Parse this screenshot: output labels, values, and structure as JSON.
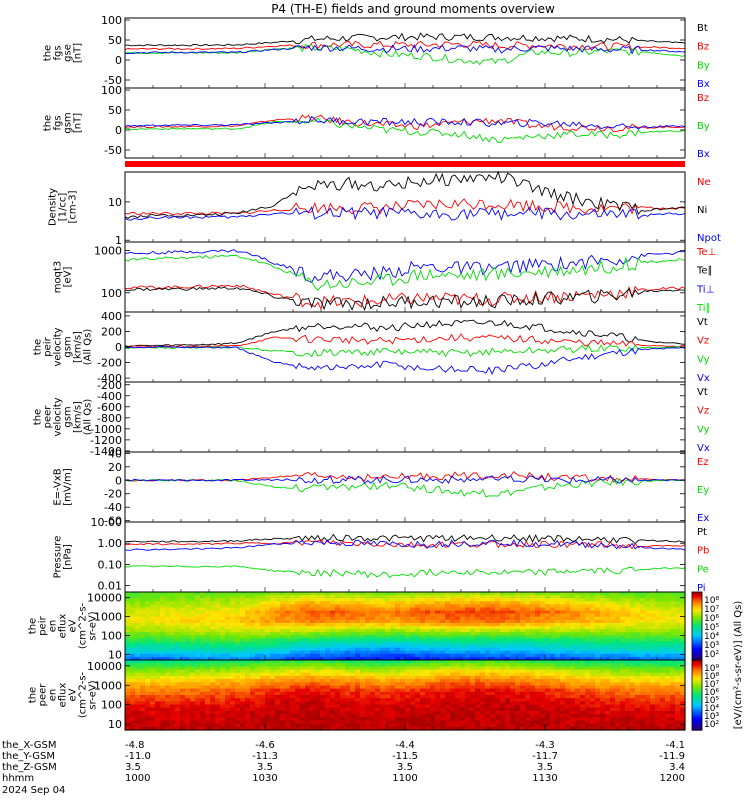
{
  "title": "P4 (TH-E) fields and ground moments overview",
  "colors": {
    "black": "#000000",
    "red": "#ff0000",
    "green": "#00dd00",
    "blue": "#0000ff"
  },
  "chart_data": [
    {
      "type": "line",
      "panel": "fgs_gse",
      "ylabel": [
        "the",
        "fgs",
        "gse",
        "[nT]"
      ],
      "yticks": [
        "100",
        "50",
        "0",
        "-50"
      ],
      "ylim": [
        -70,
        105
      ],
      "series": [
        {
          "name": "Bt",
          "color": "#000000",
          "values": [
            37,
            37,
            37,
            38,
            44,
            52,
            55,
            57,
            58,
            58,
            57,
            56,
            54,
            52,
            47,
            42
          ]
        },
        {
          "name": "Bz",
          "color": "#ff0000",
          "values": [
            27,
            28,
            28,
            29,
            35,
            38,
            38,
            38,
            38,
            40,
            36,
            37,
            35,
            34,
            32,
            30
          ]
        },
        {
          "name": "By",
          "color": "#00dd00",
          "values": [
            18,
            18,
            18,
            18,
            28,
            30,
            28,
            15,
            10,
            0,
            -5,
            20,
            18,
            22,
            20,
            10
          ]
        },
        {
          "name": "Bx",
          "color": "#0000ff",
          "values": [
            18,
            19,
            19,
            19,
            26,
            32,
            30,
            28,
            28,
            30,
            26,
            30,
            28,
            26,
            25,
            20
          ]
        }
      ]
    },
    {
      "type": "line",
      "panel": "fgs_gsm",
      "ylabel": [
        "the",
        "fgs",
        "gsm",
        "[nT]"
      ],
      "yticks": [
        "100",
        "50",
        "0",
        "-50"
      ],
      "ylim": [
        -70,
        105
      ],
      "series": [
        {
          "name": "Bz",
          "color": "#ff0000",
          "values": [
            8,
            8,
            9,
            10,
            25,
            30,
            20,
            12,
            10,
            20,
            25,
            10,
            8,
            5,
            6,
            8
          ]
        },
        {
          "name": "By",
          "color": "#00dd00",
          "values": [
            2,
            3,
            3,
            3,
            20,
            22,
            10,
            0,
            -5,
            -10,
            -25,
            -15,
            -10,
            -12,
            -5,
            -2
          ]
        },
        {
          "name": "Bx",
          "color": "#0000ff",
          "values": [
            10,
            12,
            12,
            13,
            18,
            25,
            22,
            20,
            20,
            20,
            16,
            18,
            15,
            10,
            8,
            10
          ]
        }
      ]
    },
    {
      "type": "line",
      "panel": "density",
      "log": true,
      "ylabel": [
        "Density",
        "[1/cc]",
        "[cm-3]"
      ],
      "yticks": [
        "10",
        "1"
      ],
      "ylim": [
        0.9,
        60
      ],
      "series": [
        {
          "name": "Ne",
          "color": "#ff0000",
          "values": [
            5,
            5,
            5,
            5,
            6,
            7,
            7,
            7,
            8,
            9,
            9,
            8,
            7,
            7,
            7,
            7
          ]
        },
        {
          "name": "Ni",
          "color": "#000000",
          "values": [
            4,
            4.5,
            4.5,
            5,
            8,
            25,
            30,
            25,
            35,
            40,
            45,
            20,
            12,
            8,
            6,
            7
          ]
        },
        {
          "name": "Npot",
          "color": "#0000ff",
          "values": [
            3.5,
            4,
            4,
            4,
            5,
            5,
            5,
            5,
            4.5,
            5,
            5,
            5,
            4.5,
            4.5,
            4.5,
            5
          ]
        }
      ]
    },
    {
      "type": "line",
      "panel": "moments",
      "log": true,
      "ylabel": [
        "moqt3",
        "[eV]"
      ],
      "yticks": [
        "1000",
        "100"
      ],
      "ylim": [
        35,
        1600
      ],
      "series": [
        {
          "name": "Te⊥",
          "color": "#ff0000",
          "values": [
            135,
            135,
            140,
            150,
            90,
            60,
            60,
            65,
            75,
            70,
            70,
            80,
            85,
            95,
            120,
            130
          ]
        },
        {
          "name": "Te∥",
          "color": "#000000",
          "values": [
            120,
            122,
            125,
            130,
            80,
            55,
            55,
            58,
            65,
            60,
            62,
            70,
            78,
            85,
            110,
            120
          ]
        },
        {
          "name": "Ti⊥",
          "color": "#0000ff",
          "values": [
            850,
            900,
            950,
            1000,
            500,
            250,
            260,
            300,
            420,
            380,
            400,
            450,
            500,
            600,
            800,
            900
          ]
        },
        {
          "name": "Ti∥",
          "color": "#00dd00",
          "values": [
            600,
            650,
            700,
            750,
            400,
            160,
            170,
            200,
            280,
            260,
            280,
            320,
            360,
            420,
            550,
            600
          ]
        }
      ]
    },
    {
      "type": "line",
      "panel": "peir_velocity",
      "ylabel": [
        "the",
        "peir",
        "velocity",
        "gsm",
        "[km/s]",
        "(All Qs)"
      ],
      "yticks": [
        "400",
        "200",
        "0",
        "-200",
        "-400"
      ],
      "ylim": [
        -450,
        450
      ],
      "series": [
        {
          "name": "Vt",
          "color": "#000000",
          "values": [
            15,
            20,
            30,
            50,
            200,
            270,
            280,
            240,
            290,
            300,
            310,
            260,
            200,
            150,
            70,
            40
          ]
        },
        {
          "name": "Vz",
          "color": "#ff0000",
          "values": [
            5,
            8,
            10,
            15,
            120,
            100,
            90,
            80,
            100,
            120,
            110,
            90,
            60,
            40,
            20,
            10
          ]
        },
        {
          "name": "Vy",
          "color": "#00dd00",
          "values": [
            -10,
            -10,
            -8,
            -5,
            -50,
            -80,
            -70,
            -60,
            -70,
            -80,
            -60,
            -50,
            -30,
            -20,
            -10,
            0
          ]
        },
        {
          "name": "Vx",
          "color": "#0000ff",
          "values": [
            0,
            0,
            -5,
            -10,
            -200,
            -260,
            -270,
            -220,
            -280,
            -290,
            -300,
            -240,
            -150,
            -80,
            -30,
            -10
          ]
        }
      ]
    },
    {
      "type": "line",
      "panel": "peer_velocity",
      "ylabel": [
        "the",
        "peer",
        "velocity",
        "gsm",
        "[km/s]",
        "(All Qs)"
      ],
      "yticks": [
        "-200",
        "-400",
        "-600",
        "-800",
        "-1000",
        "-1200",
        "-1400"
      ],
      "ylim": [
        -1420,
        -150
      ],
      "series": [
        {
          "name": "Vt",
          "color": "#000000",
          "values": []
        },
        {
          "name": "Vz",
          "color": "#ff0000",
          "values": []
        },
        {
          "name": "Vy",
          "color": "#00dd00",
          "values": []
        },
        {
          "name": "Vx",
          "color": "#0000ff",
          "values": []
        }
      ]
    },
    {
      "type": "line",
      "panel": "efield",
      "ylabel": [
        "E=-VxB",
        "[mV/m]"
      ],
      "yticks": [
        "40",
        "20",
        "0",
        "-20",
        "-40",
        "-60"
      ],
      "ylim": [
        -62,
        42
      ],
      "series": [
        {
          "name": "Ez",
          "color": "#ff0000",
          "values": [
            0,
            0,
            0,
            0,
            5,
            6,
            5,
            4,
            6,
            7,
            8,
            6,
            3,
            2,
            1,
            0
          ]
        },
        {
          "name": "Ey",
          "color": "#00dd00",
          "values": [
            0,
            0,
            0,
            0,
            -10,
            -12,
            -10,
            -8,
            -12,
            -18,
            -20,
            -12,
            -6,
            -3,
            -1,
            0
          ]
        },
        {
          "name": "Ex",
          "color": "#0000ff",
          "values": [
            0,
            0,
            0,
            0,
            1,
            1,
            1,
            1,
            1,
            1,
            1,
            1,
            0,
            0,
            0,
            0
          ]
        }
      ]
    },
    {
      "type": "line",
      "panel": "pressure",
      "log": true,
      "ylabel": [
        "Pressure",
        "[nPa]"
      ],
      "yticks": [
        "10.00",
        "1.00",
        "0.10",
        "0.01"
      ],
      "ylim": [
        0.005,
        10
      ],
      "series": [
        {
          "name": "Pt",
          "color": "#000000",
          "values": [
            1.2,
            1.2,
            1.2,
            1.3,
            1.6,
            1.8,
            1.8,
            1.7,
            1.7,
            1.8,
            1.8,
            1.7,
            1.6,
            1.5,
            1.3,
            1.2
          ]
        },
        {
          "name": "Pb",
          "color": "#ff0000",
          "values": [
            0.9,
            0.9,
            0.9,
            1.0,
            1.0,
            1.1,
            1.0,
            0.9,
            0.8,
            0.9,
            0.9,
            0.9,
            0.9,
            0.8,
            0.7,
            0.8
          ]
        },
        {
          "name": "Pe",
          "color": "#00dd00",
          "values": [
            0.08,
            0.08,
            0.08,
            0.08,
            0.05,
            0.04,
            0.04,
            0.03,
            0.04,
            0.05,
            0.04,
            0.04,
            0.05,
            0.05,
            0.06,
            0.07
          ]
        },
        {
          "name": "Pi",
          "color": "#0000ff",
          "values": [
            0.5,
            0.5,
            0.55,
            0.6,
            0.9,
            1.1,
            1.0,
            0.9,
            0.9,
            1.0,
            1.1,
            1.0,
            0.9,
            0.8,
            0.6,
            0.5
          ]
        }
      ]
    },
    {
      "type": "heatmap",
      "panel": "peir_en_eflux",
      "ylabel": [
        "the",
        "peir",
        "en",
        "eflux",
        "eV",
        "(cm^2-s-",
        "sr-eV)"
      ],
      "yticks": [
        "10000",
        "1000",
        "100",
        "10"
      ],
      "ylim": [
        5,
        20000
      ],
      "colorbar_ticks": [
        "10⁸",
        "10⁷",
        "10⁶",
        "10⁵",
        "10⁴",
        "10³",
        "10²"
      ],
      "rows": [
        [
          5.8,
          5.9,
          6.0,
          6.0,
          6.2,
          6.3,
          6.2,
          6.1,
          6.2,
          6.3,
          6.3,
          6.2,
          6.1,
          6.0,
          5.9,
          5.9
        ],
        [
          6.2,
          6.3,
          6.4,
          6.5,
          6.9,
          7.2,
          7.1,
          7.0,
          7.2,
          7.3,
          7.3,
          7.1,
          6.9,
          6.7,
          6.4,
          6.3
        ],
        [
          6.6,
          6.7,
          6.8,
          6.9,
          7.5,
          7.9,
          7.8,
          7.6,
          7.9,
          8.0,
          8.0,
          7.8,
          7.6,
          7.3,
          6.9,
          6.7
        ],
        [
          6.8,
          6.9,
          7.0,
          7.1,
          7.4,
          7.6,
          7.5,
          7.4,
          7.6,
          7.7,
          7.7,
          7.5,
          7.3,
          7.1,
          6.9,
          6.8
        ],
        [
          6.3,
          6.4,
          6.5,
          6.6,
          6.6,
          6.5,
          6.4,
          6.3,
          6.4,
          6.5,
          6.5,
          6.4,
          6.4,
          6.4,
          6.3,
          6.3
        ],
        [
          5.6,
          5.6,
          5.7,
          5.8,
          5.6,
          5.3,
          5.2,
          5.1,
          5.2,
          5.3,
          5.3,
          5.3,
          5.4,
          5.5,
          5.5,
          5.6
        ],
        [
          4.8,
          4.8,
          4.9,
          5.0,
          4.7,
          4.3,
          4.1,
          4.0,
          4.2,
          4.3,
          4.3,
          4.4,
          4.6,
          4.7,
          4.8,
          4.8
        ],
        [
          3.8,
          3.8,
          3.9,
          4.0,
          3.7,
          3.4,
          3.3,
          3.2,
          3.3,
          3.4,
          3.4,
          3.5,
          3.6,
          3.7,
          3.8,
          3.8
        ]
      ]
    },
    {
      "type": "heatmap",
      "panel": "peer_en_eflux",
      "ylabel": [
        "the",
        "peer",
        "en",
        "eflux",
        "eV",
        "(cm^2-s-",
        "sr-eV)"
      ],
      "yticks": [
        "10000",
        "1000",
        "100",
        "10"
      ],
      "ylim": [
        5,
        20000
      ],
      "colorbar_ticks": [
        "10⁹",
        "10⁸",
        "10⁷",
        "10⁶",
        "10⁵",
        "10⁴",
        "10³",
        "10²"
      ],
      "rows": [
        [
          5.2,
          5.2,
          5.3,
          5.4,
          5.6,
          5.7,
          5.5,
          5.3,
          5.6,
          5.8,
          5.8,
          5.6,
          5.4,
          5.3,
          5.2,
          5.2
        ],
        [
          6.2,
          6.2,
          6.3,
          6.4,
          6.6,
          6.8,
          6.6,
          6.4,
          6.7,
          6.9,
          6.9,
          6.7,
          6.5,
          6.3,
          6.2,
          6.2
        ],
        [
          7.0,
          7.0,
          7.1,
          7.2,
          7.4,
          7.6,
          7.5,
          7.3,
          7.5,
          7.7,
          7.7,
          7.5,
          7.3,
          7.1,
          7.0,
          7.0
        ],
        [
          7.6,
          7.6,
          7.7,
          7.8,
          8.0,
          8.2,
          8.0,
          7.9,
          8.1,
          8.2,
          8.2,
          8.1,
          7.9,
          7.7,
          7.6,
          7.6
        ],
        [
          8.0,
          8.0,
          8.0,
          8.1,
          8.3,
          8.4,
          8.3,
          8.2,
          8.3,
          8.4,
          8.4,
          8.3,
          8.2,
          8.1,
          8.0,
          8.0
        ],
        [
          8.3,
          8.3,
          8.3,
          8.4,
          8.4,
          8.5,
          8.4,
          8.4,
          8.4,
          8.5,
          8.5,
          8.4,
          8.4,
          8.3,
          8.3,
          8.3
        ],
        [
          8.4,
          8.4,
          8.4,
          8.4,
          8.5,
          8.5,
          8.5,
          8.5,
          8.5,
          8.5,
          8.5,
          8.5,
          8.4,
          8.4,
          8.4,
          8.4
        ],
        [
          8.5,
          8.5,
          8.5,
          8.5,
          8.5,
          8.5,
          8.5,
          8.5,
          8.5,
          8.5,
          8.5,
          8.5,
          8.5,
          8.5,
          8.5,
          8.5
        ]
      ]
    }
  ],
  "colorbar_label": "[eV/(cm²-s-sr-eV)] (All Qs)",
  "axis_rows": {
    "labels": [
      "the_X-GSM",
      "the_Y-GSM",
      "the_Z-GSM",
      "hhmm",
      "2024 Sep 04"
    ],
    "ticks": [
      [
        "-4.8",
        "-11.0",
        "3.5",
        "1000"
      ],
      [
        "-4.6",
        "-11.3",
        "3.5",
        "1030"
      ],
      [
        "-4.4",
        "-11.5",
        "3.5",
        "1100"
      ],
      [
        "-4.3",
        "-11.7",
        "3.5",
        "1130"
      ],
      [
        "-4.1",
        "-11.9",
        "3.4",
        "1200"
      ]
    ]
  }
}
